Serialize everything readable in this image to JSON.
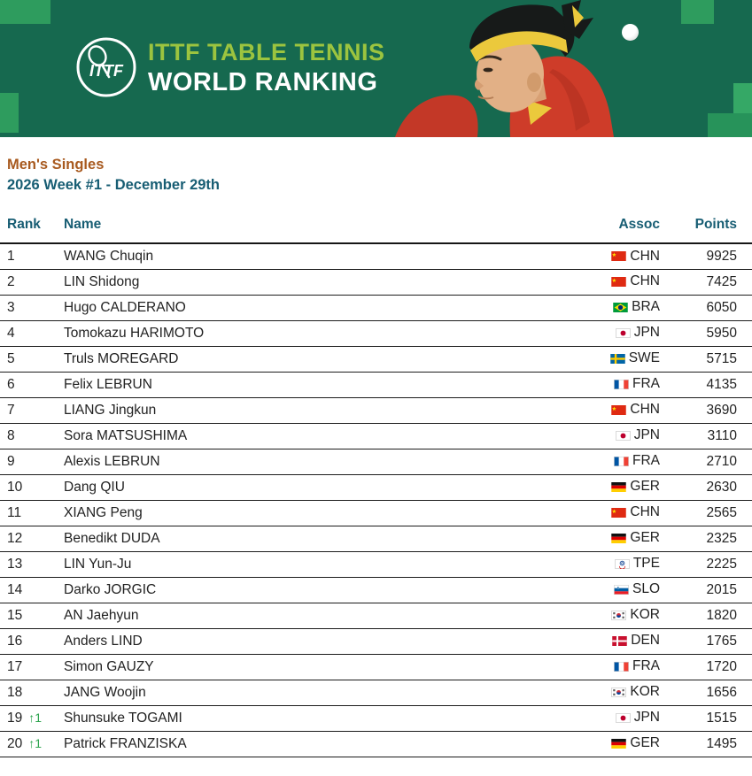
{
  "colors": {
    "banner_bg": "#16694f",
    "square_green": "#2e9c5e",
    "square_green_bright": "#35a866",
    "square_green_dark": "#27935a",
    "title_green": "#9cc43f",
    "category_color": "#a85a1f",
    "heading_teal": "#175d73",
    "row_text": "#222222",
    "rank_up_green": "#2da44e"
  },
  "banner": {
    "logo_text": "ITTF",
    "title_line1": "ITTF TABLE TENNIS",
    "title_line2": "WORLD RANKING"
  },
  "subheader": {
    "category": "Men's Singles",
    "week": "2026 Week #1 - December 29th"
  },
  "table": {
    "columns": {
      "rank": "Rank",
      "name": "Name",
      "assoc": "Assoc",
      "points": "Points"
    },
    "rows": [
      {
        "rank": 1,
        "change": "",
        "name": "WANG Chuqin",
        "assoc": "CHN",
        "points": 9925
      },
      {
        "rank": 2,
        "change": "",
        "name": "LIN Shidong",
        "assoc": "CHN",
        "points": 7425
      },
      {
        "rank": 3,
        "change": "",
        "name": "Hugo CALDERANO",
        "assoc": "BRA",
        "points": 6050
      },
      {
        "rank": 4,
        "change": "",
        "name": "Tomokazu HARIMOTO",
        "assoc": "JPN",
        "points": 5950
      },
      {
        "rank": 5,
        "change": "",
        "name": "Truls MOREGARD",
        "assoc": "SWE",
        "points": 5715
      },
      {
        "rank": 6,
        "change": "",
        "name": "Felix LEBRUN",
        "assoc": "FRA",
        "points": 4135
      },
      {
        "rank": 7,
        "change": "",
        "name": "LIANG Jingkun",
        "assoc": "CHN",
        "points": 3690
      },
      {
        "rank": 8,
        "change": "",
        "name": "Sora MATSUSHIMA",
        "assoc": "JPN",
        "points": 3110
      },
      {
        "rank": 9,
        "change": "",
        "name": "Alexis LEBRUN",
        "assoc": "FRA",
        "points": 2710
      },
      {
        "rank": 10,
        "change": "",
        "name": "Dang QIU",
        "assoc": "GER",
        "points": 2630
      },
      {
        "rank": 11,
        "change": "",
        "name": "XIANG Peng",
        "assoc": "CHN",
        "points": 2565
      },
      {
        "rank": 12,
        "change": "",
        "name": "Benedikt DUDA",
        "assoc": "GER",
        "points": 2325
      },
      {
        "rank": 13,
        "change": "",
        "name": "LIN Yun-Ju",
        "assoc": "TPE",
        "points": 2225
      },
      {
        "rank": 14,
        "change": "",
        "name": "Darko JORGIC",
        "assoc": "SLO",
        "points": 2015
      },
      {
        "rank": 15,
        "change": "",
        "name": "AN Jaehyun",
        "assoc": "KOR",
        "points": 1820
      },
      {
        "rank": 16,
        "change": "",
        "name": "Anders LIND",
        "assoc": "DEN",
        "points": 1765
      },
      {
        "rank": 17,
        "change": "",
        "name": "Simon GAUZY",
        "assoc": "FRA",
        "points": 1720
      },
      {
        "rank": 18,
        "change": "",
        "name": "JANG Woojin",
        "assoc": "KOR",
        "points": 1656
      },
      {
        "rank": 19,
        "change": "↑1",
        "name": "Shunsuke TOGAMI",
        "assoc": "JPN",
        "points": 1515
      },
      {
        "rank": 20,
        "change": "↑1",
        "name": "Patrick FRANZISKA",
        "assoc": "GER",
        "points": 1495
      }
    ]
  }
}
